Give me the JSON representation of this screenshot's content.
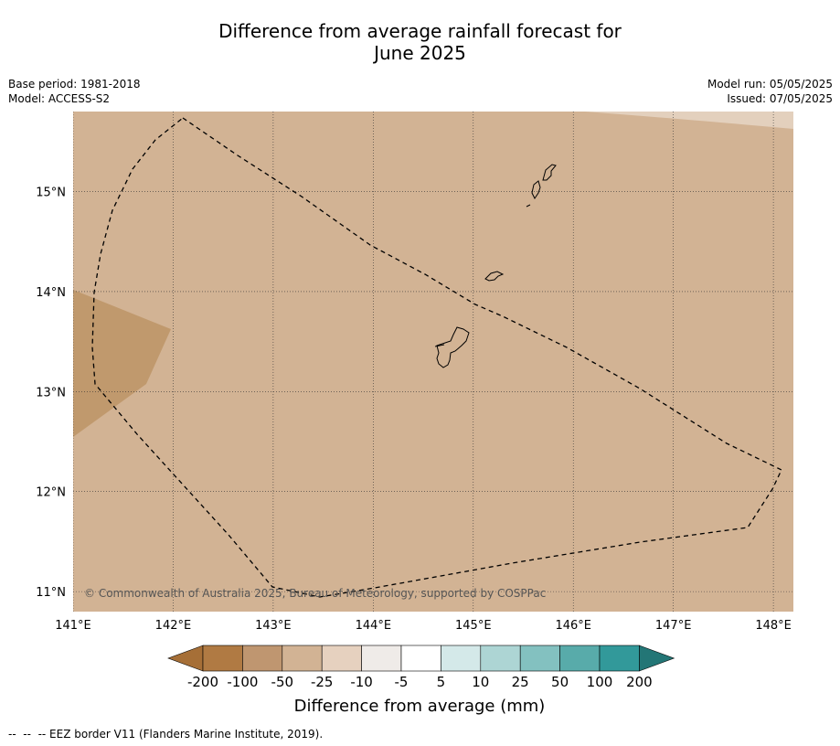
{
  "title": {
    "line1": "Difference from average rainfall forecast for",
    "line2": "June 2025"
  },
  "meta": {
    "base_period": "Base period: 1981-2018",
    "model": "Model: ACCESS-S2",
    "model_run": "Model run: 05/05/2025",
    "issued": "Issued: 07/05/2025"
  },
  "map": {
    "lon_range": [
      141.0,
      148.2
    ],
    "lat_range": [
      10.8,
      15.8
    ],
    "lon_ticks": [
      {
        "value": 141,
        "label": "141°E"
      },
      {
        "value": 142,
        "label": "142°E"
      },
      {
        "value": 143,
        "label": "143°E"
      },
      {
        "value": 144,
        "label": "144°E"
      },
      {
        "value": 145,
        "label": "145°E"
      },
      {
        "value": 146,
        "label": "146°E"
      },
      {
        "value": 147,
        "label": "147°E"
      },
      {
        "value": 148,
        "label": "148°E"
      }
    ],
    "lat_ticks": [
      {
        "value": 15,
        "label": "15°N"
      },
      {
        "value": 14,
        "label": "14°N"
      },
      {
        "value": 13,
        "label": "13°N"
      },
      {
        "value": 12,
        "label": "12°N"
      },
      {
        "value": 11,
        "label": "11°N"
      }
    ],
    "gridlines": true,
    "background_category": "-50 to -25",
    "copyright": "© Commonwealth of Australia 2025, Bureau of Meteorology, supported by COSPPac",
    "colors": {
      "base": "#d2b394",
      "drier_patch": "#c0996d",
      "wetter_patch": "#e3d0bd"
    }
  },
  "colorbar": {
    "title": "Difference from average (mm)",
    "labels": [
      "-200",
      "-100",
      "-50",
      "-25",
      "-10",
      "-5",
      "5",
      "10",
      "25",
      "50",
      "100",
      "200"
    ],
    "colors": [
      "#a66f37",
      "#b07a43",
      "#bf9670",
      "#d2b394",
      "#e6d1bf",
      "#efebe8",
      "#ffffff",
      "#d4e9e9",
      "#add5d4",
      "#83c1c0",
      "#58abaa",
      "#32999a",
      "#237676"
    ]
  },
  "footer": {
    "text": "--  --  -- EEZ border V11 (Flanders Marine Institute, 2019)."
  }
}
